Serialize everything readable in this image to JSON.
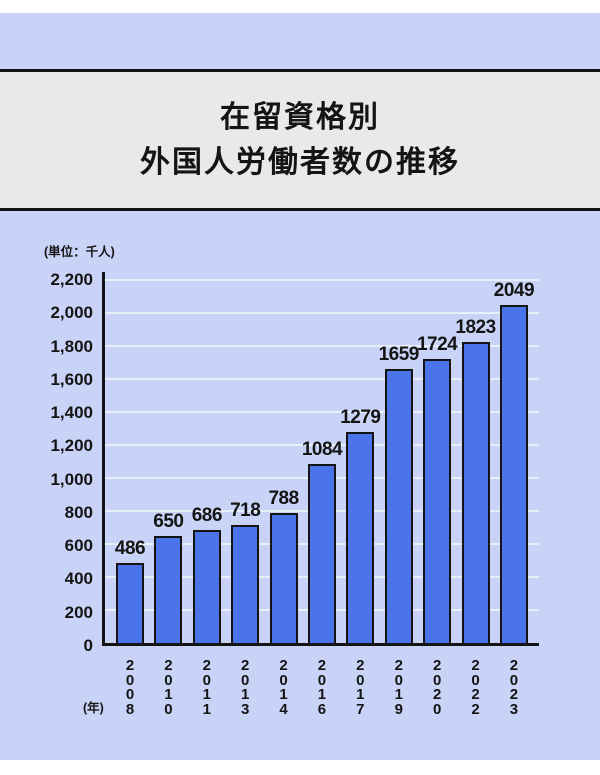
{
  "header": {
    "title_line1": "在留資格別",
    "title_line2": "外国人労働者数の推移"
  },
  "chart": {
    "unit_label": "(単位：千人)",
    "x_unit_label": "(年)"
  },
  "chart_data": {
    "type": "bar",
    "title": "在留資格別 外国人労働者数の推移",
    "categories": [
      "2008",
      "2010",
      "2011",
      "2013",
      "2014",
      "2016",
      "2017",
      "2019",
      "2020",
      "2022",
      "2023"
    ],
    "values": [
      486,
      650,
      686,
      718,
      788,
      1084,
      1279,
      1659,
      1724,
      1823,
      2049
    ],
    "xlabel": "(年)",
    "ylabel": "(単位：千人)",
    "ylim": [
      0,
      2200
    ],
    "ytick_step": 200,
    "ytick_labels": [
      "0",
      "200",
      "400",
      "600",
      "800",
      "1,000",
      "1,200",
      "1,400",
      "1,600",
      "1,800",
      "2,000",
      "2,200"
    ],
    "grid": true,
    "legend": false
  },
  "colors": {
    "page_bg": "#ffffff",
    "panel_bg": "#c9d3f7",
    "title_band_bg": "#e9e9e9",
    "rule": "#141414",
    "text": "#141414",
    "axis": "#141414",
    "gridline": "#e9eefb",
    "bar_fill": "#4a74e8",
    "bar_border": "#141414"
  }
}
